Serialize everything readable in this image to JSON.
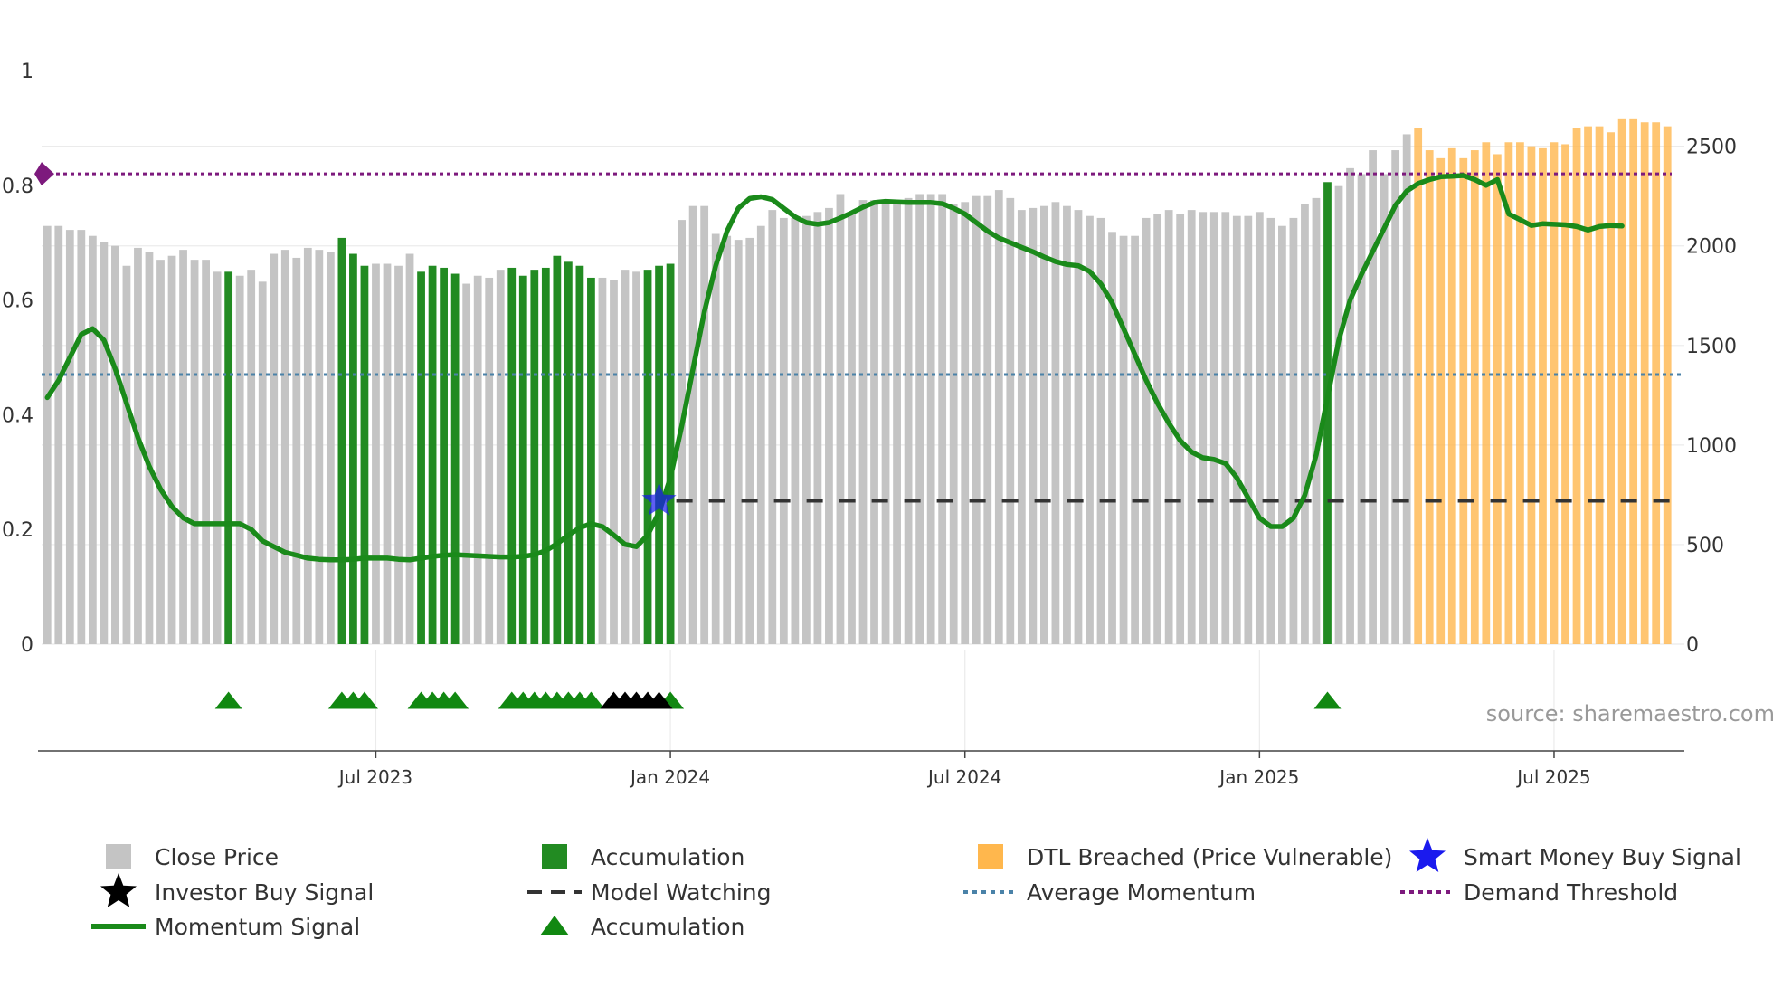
{
  "chart_data": {
    "type": "bar",
    "title": "",
    "source": "source: sharemaestro.com",
    "left_axis": {
      "min": 0,
      "max": 1,
      "ticks": [
        "0",
        "0.2",
        "0.4",
        "0.6",
        "0.8",
        "1"
      ]
    },
    "right_axis": {
      "min": 0,
      "max": 2880,
      "ticks": [
        "0",
        "500",
        "1000",
        "1500",
        "2000",
        "2500"
      ]
    },
    "x_ticks": [
      "Jul 2023",
      "Jan 2024",
      "Jul 2024",
      "Jan 2025",
      "Jul 2025"
    ],
    "x_tick_weeks": [
      29,
      55,
      81,
      107,
      133
    ],
    "total_weeks": 145,
    "prices": [
      2100,
      2100,
      2080,
      2080,
      2050,
      2020,
      2000,
      1900,
      1990,
      1970,
      1930,
      1950,
      1980,
      1930,
      1930,
      1870,
      1870,
      1850,
      1880,
      1820,
      1960,
      1980,
      1940,
      1990,
      1980,
      1970,
      2040,
      1960,
      1900,
      1910,
      1910,
      1900,
      1960,
      1870,
      1900,
      1890,
      1860,
      1810,
      1850,
      1840,
      1880,
      1890,
      1850,
      1880,
      1890,
      1950,
      1920,
      1900,
      1840,
      1840,
      1830,
      1880,
      1870,
      1880,
      1900,
      1910,
      2130,
      2200,
      2200,
      2060,
      2050,
      2030,
      2040,
      2100,
      2180,
      2140,
      2140,
      2150,
      2170,
      2190,
      2260,
      2170,
      2230,
      2230,
      2230,
      2230,
      2240,
      2260,
      2260,
      2260,
      2210,
      2220,
      2250,
      2250,
      2280,
      2240,
      2180,
      2190,
      2200,
      2220,
      2200,
      2180,
      2150,
      2140,
      2070,
      2050,
      2050,
      2140,
      2160,
      2180,
      2160,
      2180,
      2170,
      2170,
      2170,
      2150,
      2150,
      2170,
      2140,
      2100,
      2140,
      2210,
      2240,
      2320,
      2300,
      2390,
      2360,
      2480,
      2360,
      2480,
      2560,
      2590,
      2480,
      2440,
      2490,
      2440,
      2480,
      2520,
      2460,
      2520,
      2520,
      2500,
      2490,
      2520,
      2510,
      2590,
      2600,
      2600,
      2570,
      2640,
      2640,
      2620,
      2620,
      2600
    ],
    "series": [
      {
        "name": "Close Price",
        "color": "#c4c4c4"
      },
      {
        "name": "Accumulation",
        "color": "#228b22",
        "weeks": [
          16,
          26,
          27,
          28,
          33,
          34,
          35,
          36,
          41,
          42,
          43,
          44,
          45,
          46,
          47,
          48,
          53,
          54,
          55,
          113
        ]
      },
      {
        "name": "DTL Breached (Price Vulnerable)",
        "color": "#ffb74d",
        "from_week": 121
      },
      {
        "name": "Momentum Signal",
        "color": "#1a8a1a",
        "points": [
          [
            0,
            0.43
          ],
          [
            1,
            0.46
          ],
          [
            2,
            0.5
          ],
          [
            3,
            0.54
          ],
          [
            4,
            0.55
          ],
          [
            5,
            0.53
          ],
          [
            6,
            0.48
          ],
          [
            7,
            0.42
          ],
          [
            8,
            0.36
          ],
          [
            9,
            0.31
          ],
          [
            10,
            0.27
          ],
          [
            11,
            0.24
          ],
          [
            12,
            0.22
          ],
          [
            13,
            0.21
          ],
          [
            14,
            0.21
          ],
          [
            15,
            0.21
          ],
          [
            16,
            0.21
          ],
          [
            17,
            0.21
          ],
          [
            18,
            0.2
          ],
          [
            19,
            0.18
          ],
          [
            20,
            0.17
          ],
          [
            21,
            0.16
          ],
          [
            22,
            0.155
          ],
          [
            23,
            0.15
          ],
          [
            24,
            0.148
          ],
          [
            25,
            0.147
          ],
          [
            26,
            0.147
          ],
          [
            27,
            0.148
          ],
          [
            28,
            0.15
          ],
          [
            29,
            0.15
          ],
          [
            30,
            0.15
          ],
          [
            31,
            0.148
          ],
          [
            32,
            0.147
          ],
          [
            33,
            0.15
          ],
          [
            34,
            0.153
          ],
          [
            35,
            0.155
          ],
          [
            36,
            0.156
          ],
          [
            37,
            0.155
          ],
          [
            38,
            0.154
          ],
          [
            39,
            0.153
          ],
          [
            40,
            0.152
          ],
          [
            41,
            0.152
          ],
          [
            42,
            0.153
          ],
          [
            43,
            0.156
          ],
          [
            44,
            0.163
          ],
          [
            45,
            0.175
          ],
          [
            46,
            0.19
          ],
          [
            47,
            0.203
          ],
          [
            48,
            0.21
          ],
          [
            49,
            0.205
          ],
          [
            50,
            0.19
          ],
          [
            51,
            0.174
          ],
          [
            52,
            0.17
          ],
          [
            53,
            0.19
          ],
          [
            54,
            0.23
          ],
          [
            55,
            0.29
          ],
          [
            56,
            0.38
          ],
          [
            57,
            0.48
          ],
          [
            58,
            0.58
          ],
          [
            59,
            0.66
          ],
          [
            60,
            0.72
          ],
          [
            61,
            0.76
          ],
          [
            62,
            0.777
          ],
          [
            63,
            0.78
          ],
          [
            64,
            0.775
          ],
          [
            65,
            0.76
          ],
          [
            66,
            0.745
          ],
          [
            67,
            0.735
          ],
          [
            68,
            0.732
          ],
          [
            69,
            0.735
          ],
          [
            70,
            0.743
          ],
          [
            71,
            0.752
          ],
          [
            72,
            0.762
          ],
          [
            73,
            0.77
          ],
          [
            74,
            0.772
          ],
          [
            75,
            0.771
          ],
          [
            76,
            0.77
          ],
          [
            77,
            0.77
          ],
          [
            78,
            0.77
          ],
          [
            79,
            0.768
          ],
          [
            80,
            0.76
          ],
          [
            81,
            0.75
          ],
          [
            82,
            0.735
          ],
          [
            83,
            0.72
          ],
          [
            84,
            0.708
          ],
          [
            85,
            0.7
          ],
          [
            86,
            0.692
          ],
          [
            87,
            0.684
          ],
          [
            88,
            0.675
          ],
          [
            89,
            0.667
          ],
          [
            90,
            0.662
          ],
          [
            91,
            0.66
          ],
          [
            92,
            0.65
          ],
          [
            93,
            0.628
          ],
          [
            94,
            0.595
          ],
          [
            95,
            0.55
          ],
          [
            96,
            0.505
          ],
          [
            97,
            0.46
          ],
          [
            98,
            0.42
          ],
          [
            99,
            0.385
          ],
          [
            100,
            0.355
          ],
          [
            101,
            0.335
          ],
          [
            102,
            0.325
          ],
          [
            103,
            0.322
          ],
          [
            104,
            0.315
          ],
          [
            105,
            0.29
          ],
          [
            106,
            0.255
          ],
          [
            107,
            0.22
          ],
          [
            108,
            0.205
          ],
          [
            109,
            0.205
          ],
          [
            110,
            0.22
          ],
          [
            111,
            0.26
          ],
          [
            112,
            0.33
          ],
          [
            113,
            0.43
          ],
          [
            114,
            0.53
          ],
          [
            115,
            0.6
          ],
          [
            116,
            0.645
          ],
          [
            117,
            0.685
          ],
          [
            118,
            0.725
          ],
          [
            119,
            0.765
          ],
          [
            120,
            0.79
          ],
          [
            121,
            0.803
          ],
          [
            122,
            0.81
          ],
          [
            123,
            0.815
          ],
          [
            124,
            0.816
          ],
          [
            125,
            0.817
          ],
          [
            126,
            0.81
          ],
          [
            127,
            0.8
          ],
          [
            128,
            0.81
          ],
          [
            129,
            0.75
          ],
          [
            130,
            0.74
          ],
          [
            131,
            0.73
          ],
          [
            132,
            0.733
          ],
          [
            133,
            0.732
          ],
          [
            134,
            0.731
          ],
          [
            135,
            0.728
          ],
          [
            136,
            0.722
          ],
          [
            137,
            0.728
          ],
          [
            138,
            0.73
          ],
          [
            139,
            0.729
          ]
        ]
      },
      {
        "name": "Average Momentum",
        "color": "#4a82a8",
        "value": 0.47
      },
      {
        "name": "Demand Threshold",
        "color": "#7d1a7d",
        "value": 0.82
      },
      {
        "name": "Model Watching",
        "color": "#333333",
        "value": 0.25,
        "from_week": 56
      },
      {
        "name": "Smart Money Buy Signal",
        "color": "#1a1aee",
        "week": 54,
        "value": 0.25
      },
      {
        "name": "Investor Buy Signal",
        "color": "#000000",
        "weeks": [
          50,
          51,
          52,
          53,
          54
        ]
      },
      {
        "name": "Accumulation",
        "color": "#118811",
        "weeks": [
          16,
          26,
          27,
          28,
          33,
          34,
          35,
          36,
          41,
          42,
          43,
          44,
          45,
          46,
          47,
          48,
          53,
          54,
          55,
          113
        ]
      }
    ]
  },
  "legend": {
    "close_price": "Close Price",
    "accumulation_bar": "Accumulation",
    "dtl_breached": "DTL Breached (Price Vulnerable)",
    "smart_money": "Smart Money Buy Signal",
    "investor_buy": "Investor Buy Signal",
    "model_watching": "Model Watching",
    "average_momentum": "Average Momentum",
    "demand_threshold": "Demand Threshold",
    "momentum_signal": "Momentum Signal",
    "accumulation_marker": "Accumulation"
  }
}
